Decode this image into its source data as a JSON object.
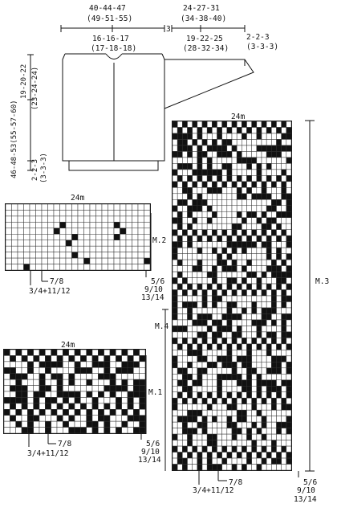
{
  "top_dims": {
    "width_total": "40-44-47",
    "width_total_b": "(49-51-55)",
    "half_width": "16-16-17",
    "half_width_b": "(17-18-18)",
    "shoulder_3": "3",
    "sleeve_top": "24-27-31",
    "sleeve_top_b": "(34-38-40)",
    "sleeve_bot": "19-22-25",
    "sleeve_bot_b": "(28-32-34)",
    "cuff": "2-2-3",
    "cuff_b": "(3-3-3)"
  },
  "side_dims": {
    "length": "46-48-53(55-57-60)",
    "armhole": "19-20-22",
    "armhole_b": "(23-24-24)",
    "rib": "2-2-3",
    "rib_b": "(3-3-3)"
  },
  "charts": {
    "m2": {
      "width_label": "24m",
      "name": "M.2",
      "size_a": "7/8",
      "size_b": "3/4+11/12",
      "size_c": "5/6",
      "size_d": "9/10",
      "size_e": "13/14"
    },
    "m1": {
      "width_label": "24m",
      "name": "M.1",
      "size_a": "7/8",
      "size_b": "3/4+11/12",
      "size_c": "5/6",
      "size_d": "9/10",
      "size_e": "13/14"
    },
    "m3": {
      "width_label": "24m",
      "name_3": "M.3",
      "name_4": "M.4",
      "size_a": "7/8",
      "size_b": "3/4+11/12",
      "size_c": "5/6",
      "size_d": "9/10",
      "size_e": "13/14"
    }
  }
}
